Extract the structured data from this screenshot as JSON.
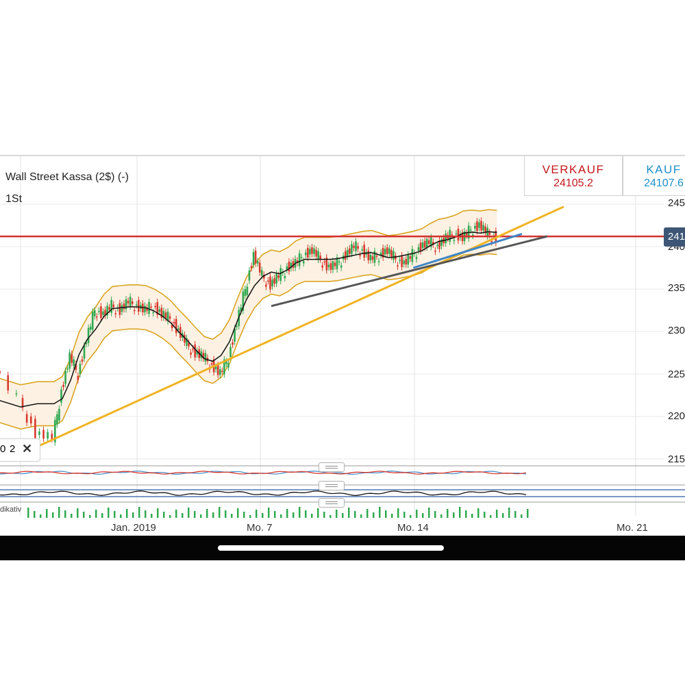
{
  "instrument": {
    "title": "Wall Street Kassa (2$) (-)",
    "timeframe": "1St"
  },
  "quotes": {
    "sell_label": "VERKAUF",
    "sell_value": "24105.2",
    "buy_label": "KAUF",
    "buy_value": "24107.6"
  },
  "y_axis": {
    "ticks": [
      "245",
      "240",
      "235",
      "230",
      "225",
      "220",
      "215"
    ],
    "current_tag": "241"
  },
  "x_axis": {
    "ticks": [
      "Jan. 2019",
      "Mo. 7",
      "Mo. 14",
      "Mo. 21"
    ]
  },
  "toolbar": {
    "count_left": "0",
    "count_right": "2"
  },
  "indicator_label": "dikativ",
  "colors": {
    "sell": "#c3161c",
    "buy": "#1c8fc9",
    "resistance": "#d32f2f",
    "trendline": "#f0b323",
    "support": "#555555",
    "short_trend": "#3f86c7",
    "bollinger": "#d9a520",
    "bollinger_fill": "#fdf1e3",
    "mid_line": "#111111",
    "candle_up": "#2fa84f",
    "candle_down": "#d8382f",
    "price_tag_bg": "#3d5675"
  },
  "chart_data": {
    "type": "candlestick",
    "y_ticks": [
      245,
      240,
      235,
      230,
      225,
      220,
      215
    ],
    "price_path": [
      [
        -4,
        22700
      ],
      [
        0,
        22200
      ],
      [
        2,
        21800
      ],
      [
        4,
        21750
      ],
      [
        5,
        22300
      ],
      [
        6,
        22700
      ],
      [
        7,
        22500
      ],
      [
        8,
        22900
      ],
      [
        9,
        23250
      ],
      [
        10,
        23200
      ],
      [
        11,
        23300
      ],
      [
        12,
        23250
      ],
      [
        13,
        23350
      ],
      [
        14,
        23300
      ],
      [
        15,
        23250
      ],
      [
        16,
        23300
      ],
      [
        17,
        23200
      ],
      [
        18,
        23150
      ],
      [
        19,
        23000
      ],
      [
        20,
        22850
      ],
      [
        21,
        22750
      ],
      [
        22,
        22700
      ],
      [
        23,
        22600
      ],
      [
        24,
        22500
      ],
      [
        25,
        22700
      ],
      [
        26,
        23100
      ],
      [
        27,
        23500
      ],
      [
        28,
        23900
      ],
      [
        29,
        23650
      ],
      [
        30,
        23550
      ],
      [
        31,
        23650
      ],
      [
        32,
        23750
      ],
      [
        33,
        23800
      ],
      [
        34,
        23900
      ],
      [
        35,
        23950
      ],
      [
        36,
        23850
      ],
      [
        37,
        23750
      ],
      [
        38,
        23800
      ],
      [
        39,
        23900
      ],
      [
        40,
        24000
      ],
      [
        41,
        23950
      ],
      [
        42,
        23850
      ],
      [
        43,
        23900
      ],
      [
        44,
        23950
      ],
      [
        45,
        23850
      ],
      [
        46,
        23800
      ],
      [
        47,
        23900
      ],
      [
        48,
        24000
      ],
      [
        49,
        24050
      ],
      [
        50,
        24000
      ],
      [
        51,
        24100
      ],
      [
        52,
        24150
      ],
      [
        53,
        24100
      ],
      [
        54,
        24200
      ],
      [
        55,
        24250
      ],
      [
        56,
        24150
      ],
      [
        57,
        24100
      ]
    ],
    "resistance_level": 24120,
    "trendlines": [
      {
        "name": "main-uptrend",
        "from": [
          1,
          21600
        ],
        "to": [
          65,
          24470
        ]
      },
      {
        "name": "support-line",
        "from": [
          30,
          23300
        ],
        "to": [
          63,
          24120
        ]
      },
      {
        "name": "short-uptrend",
        "from": [
          47,
          23750
        ],
        "to": [
          60,
          24150
        ]
      }
    ]
  }
}
